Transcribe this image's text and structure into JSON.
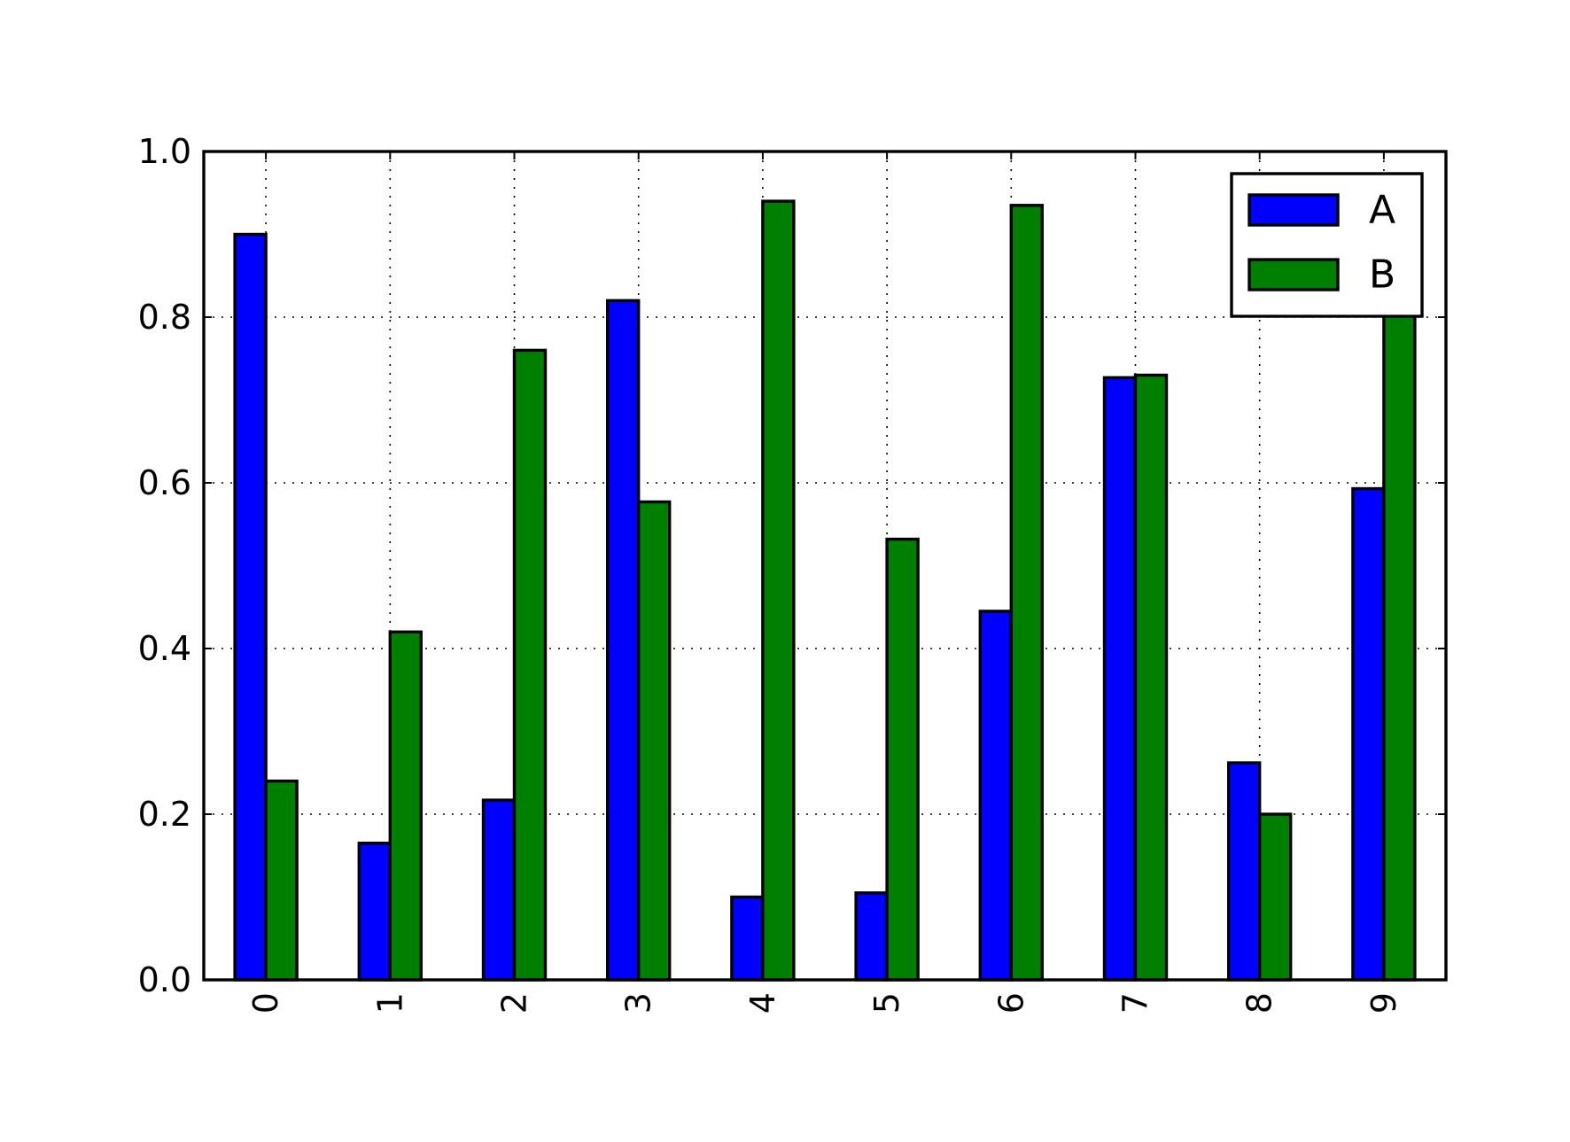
{
  "chart_data": {
    "type": "bar",
    "categories": [
      "0",
      "1",
      "2",
      "3",
      "4",
      "5",
      "6",
      "7",
      "8",
      "9"
    ],
    "series": [
      {
        "name": "A",
        "color": "#0000ff",
        "values": [
          0.9,
          0.165,
          0.217,
          0.82,
          0.1,
          0.105,
          0.445,
          0.727,
          0.262,
          0.593
        ]
      },
      {
        "name": "B",
        "color": "#008000",
        "values": [
          0.24,
          0.42,
          0.76,
          0.577,
          0.94,
          0.532,
          0.935,
          0.73,
          0.2,
          0.81
        ]
      }
    ],
    "ylim": [
      0,
      1.0
    ],
    "yticks": [
      0.0,
      0.2,
      0.4,
      0.6,
      0.8,
      1.0
    ],
    "ytick_labels": [
      "0.0",
      "0.2",
      "0.4",
      "0.6",
      "0.8",
      "1.0"
    ],
    "grid": true,
    "legend_position": "top-right",
    "xtick_rotation": "vertical"
  }
}
